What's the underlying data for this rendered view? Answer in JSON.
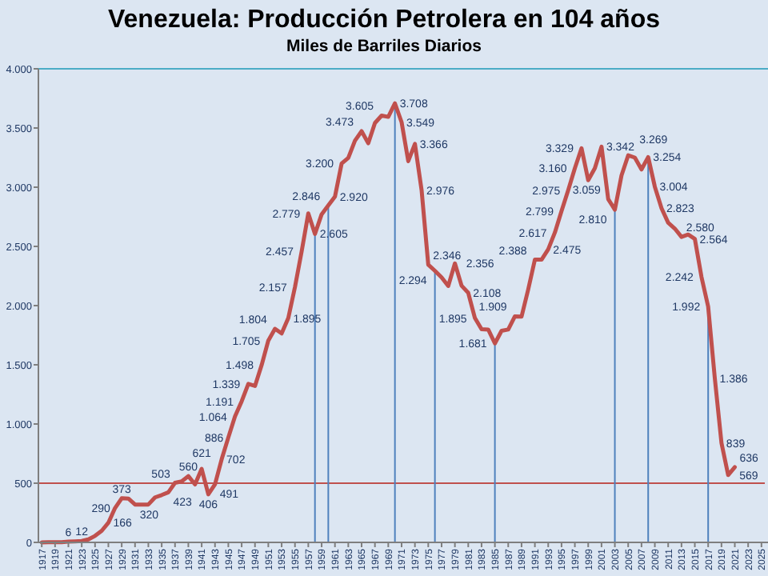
{
  "chart_data": {
    "type": "line",
    "title": "Venezuela: Producción Petrolera en 104 años",
    "subtitle": "Miles de Barriles Diarios",
    "x": [
      1917,
      1918,
      1919,
      1920,
      1921,
      1922,
      1923,
      1924,
      1925,
      1926,
      1927,
      1928,
      1929,
      1930,
      1931,
      1932,
      1933,
      1934,
      1935,
      1936,
      1937,
      1938,
      1939,
      1940,
      1941,
      1942,
      1943,
      1944,
      1945,
      1946,
      1947,
      1948,
      1949,
      1950,
      1951,
      1952,
      1953,
      1954,
      1955,
      1956,
      1957,
      1958,
      1959,
      1960,
      1961,
      1962,
      1963,
      1964,
      1965,
      1966,
      1967,
      1968,
      1969,
      1970,
      1971,
      1972,
      1973,
      1974,
      1975,
      1976,
      1977,
      1978,
      1979,
      1980,
      1981,
      1982,
      1983,
      1984,
      1985,
      1986,
      1987,
      1988,
      1989,
      1990,
      1991,
      1992,
      1993,
      1994,
      1995,
      1996,
      1997,
      1998,
      1999,
      2000,
      2001,
      2002,
      2003,
      2004,
      2005,
      2006,
      2007,
      2008,
      2009,
      2010,
      2011,
      2012,
      2013,
      2014,
      2015,
      2016,
      2017,
      2018,
      2019,
      2020,
      2021
    ],
    "series": [
      {
        "color": "#c0504d",
        "values": [
          0,
          1,
          1,
          1,
          6,
          9,
          12,
          25,
          55,
          98,
          166,
          290,
          373,
          370,
          320,
          320,
          320,
          380,
          400,
          423,
          503,
          515,
          560,
          490,
          621,
          406,
          491,
          702,
          886,
          1064,
          1191,
          1339,
          1321,
          1498,
          1705,
          1804,
          1765,
          1895,
          2157,
          2457,
          2779,
          2605,
          2771,
          2846,
          2920,
          3200,
          3248,
          3393,
          3473,
          3371,
          3542,
          3605,
          3594,
          3708,
          3549,
          3220,
          3366,
          2976,
          2346,
          2294,
          2238,
          2166,
          2356,
          2168,
          2108,
          1895,
          1800,
          1798,
          1681,
          1787,
          1798,
          1909,
          1907,
          2137,
          2388,
          2388,
          2475,
          2617,
          2799,
          2975,
          3160,
          3329,
          3059,
          3160,
          3342,
          2900,
          2810,
          3100,
          3269,
          3250,
          3150,
          3254,
          3004,
          2823,
          2700,
          2650,
          2580,
          2600,
          2564,
          2242,
          1992,
          1386,
          839,
          569,
          636
        ],
        "value_labels": [
          null,
          null,
          null,
          null,
          "6",
          null,
          "12",
          null,
          null,
          null,
          "166",
          "290",
          "373",
          null,
          "320",
          null,
          null,
          null,
          null,
          "423",
          "503",
          null,
          "560",
          null,
          "621",
          "406",
          "491",
          "702",
          "886",
          "1.064",
          "1.191",
          "1.339",
          null,
          "1.498",
          "1.705",
          "1.804",
          null,
          "1.895",
          "2.157",
          "2.457",
          "2.779",
          "2.605",
          null,
          "2.846",
          "2.920",
          "3.200",
          null,
          null,
          "3.473",
          null,
          null,
          "3.605",
          null,
          "3.708",
          "3.549",
          null,
          "3.366",
          "2.976",
          "2.346",
          "2.294",
          null,
          null,
          "2.356",
          null,
          "2.108",
          "1.895",
          null,
          null,
          "1.681",
          null,
          null,
          "1.909",
          null,
          null,
          "2.388",
          null,
          "2.475",
          "2.617",
          "2.799",
          "2.975",
          "3.160",
          "3.329",
          "3.059",
          null,
          "3.342",
          null,
          "2.810",
          null,
          "3.269",
          null,
          null,
          "3.254",
          "3.004",
          "2.823",
          null,
          null,
          "2.580",
          null,
          "2.564",
          "2.242",
          "1.992",
          "1.386",
          "839",
          "569",
          "636"
        ]
      }
    ],
    "xlim": [
      1916.5,
      2025.5
    ],
    "xticks": [
      1917,
      1919,
      1921,
      1923,
      1925,
      1927,
      1929,
      1931,
      1933,
      1935,
      1937,
      1939,
      1941,
      1943,
      1945,
      1947,
      1949,
      1951,
      1953,
      1955,
      1957,
      1959,
      1961,
      1963,
      1965,
      1967,
      1969,
      1971,
      1973,
      1975,
      1977,
      1979,
      1981,
      1983,
      1985,
      1987,
      1989,
      1991,
      1993,
      1995,
      1997,
      1999,
      2001,
      2003,
      2005,
      2007,
      2009,
      2011,
      2013,
      2015,
      2017,
      2019,
      2021,
      2023,
      2025
    ],
    "ylim": [
      0,
      4000
    ],
    "yticks": [
      0,
      500,
      {
        "value": 1000,
        "label": "1.000"
      },
      {
        "value": 1500,
        "label": "1.500"
      },
      {
        "value": 2000,
        "label": "2.000"
      },
      {
        "value": 2500,
        "label": "2.500"
      },
      {
        "value": 3000,
        "label": "3.000"
      },
      {
        "value": 3500,
        "label": "3.500"
      },
      {
        "value": 4000,
        "label": "4.000"
      }
    ],
    "ref_lines": [
      {
        "axis": "y",
        "value": 500,
        "color": "#c0504d"
      },
      {
        "axis": "x",
        "value": 1958,
        "color": "#4f81bd"
      },
      {
        "axis": "x",
        "value": 1960,
        "color": "#4f81bd"
      },
      {
        "axis": "x",
        "value": 1970,
        "color": "#4f81bd"
      },
      {
        "axis": "x",
        "value": 1976,
        "color": "#4f81bd"
      },
      {
        "axis": "x",
        "value": 1985,
        "color": "#4f81bd"
      },
      {
        "axis": "x",
        "value": 2003,
        "color": "#4f81bd"
      },
      {
        "axis": "x",
        "value": 2008,
        "color": "#4f81bd"
      },
      {
        "axis": "x",
        "value": 2017,
        "color": "#4f81bd"
      }
    ],
    "grid": false,
    "marker": "none",
    "line_style": "solid"
  }
}
